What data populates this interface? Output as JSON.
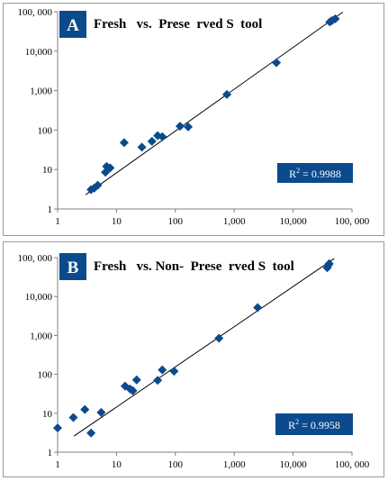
{
  "colors": {
    "marker": "#0b4a8c",
    "badge": "#0b4a8c",
    "line": "#000000",
    "axis": "#808080"
  },
  "chart_data": [
    {
      "type": "scatter",
      "xscale": "log",
      "yscale": "log",
      "xlim": [
        1,
        100000
      ],
      "ylim": [
        1,
        100000
      ],
      "xticks": [
        "1",
        "10",
        "100",
        "1,000",
        "10,000",
        "100, 000"
      ],
      "yticks": [
        "1",
        "10",
        "100",
        "1,000",
        "10,000",
        "100, 000"
      ],
      "badge": "A",
      "title": "Fresh   vs.  Prese  rved S  tool",
      "r2_label": "R",
      "r2_sup": "2",
      "r2_value": " = 0.9988",
      "trendline": [
        [
          3,
          2.3
        ],
        [
          70000,
          98000
        ]
      ],
      "points": [
        [
          3.7,
          3.1
        ],
        [
          4.2,
          3.4
        ],
        [
          4.8,
          4.0
        ],
        [
          6.5,
          8.5
        ],
        [
          6.8,
          12
        ],
        [
          7.8,
          11
        ],
        [
          13.5,
          48
        ],
        [
          27,
          37
        ],
        [
          40,
          52
        ],
        [
          50,
          72
        ],
        [
          60,
          68
        ],
        [
          120,
          125
        ],
        [
          165,
          120
        ],
        [
          750,
          800
        ],
        [
          5200,
          5100
        ],
        [
          42000,
          55000
        ],
        [
          46000,
          60000
        ],
        [
          52000,
          66000
        ]
      ]
    },
    {
      "type": "scatter",
      "xscale": "log",
      "yscale": "log",
      "xlim": [
        1,
        100000
      ],
      "ylim": [
        1,
        100000
      ],
      "xticks": [
        "1",
        "10",
        "100",
        "1,000",
        "10,000",
        "100, 000"
      ],
      "yticks": [
        "1",
        "10",
        "100",
        "1,000",
        "10,000",
        "100, 000"
      ],
      "badge": "B",
      "title": "Fresh   vs. Non-  Prese  rved S  tool",
      "r2_label": "R",
      "r2_sup": "2",
      "r2_value": " = 0.9958",
      "trendline": [
        [
          1.9,
          2.6
        ],
        [
          50000,
          95000
        ]
      ],
      "points": [
        [
          1,
          4.2
        ],
        [
          1.85,
          7.8
        ],
        [
          2.9,
          12.5
        ],
        [
          3.7,
          3.1
        ],
        [
          5.5,
          10.5
        ],
        [
          14,
          50
        ],
        [
          17,
          42
        ],
        [
          19,
          38
        ],
        [
          22,
          72
        ],
        [
          50,
          70
        ],
        [
          60,
          130
        ],
        [
          95,
          120
        ],
        [
          550,
          850
        ],
        [
          2500,
          5200
        ],
        [
          38000,
          55000
        ],
        [
          40000,
          65000
        ],
        [
          41000,
          70000
        ]
      ]
    }
  ]
}
